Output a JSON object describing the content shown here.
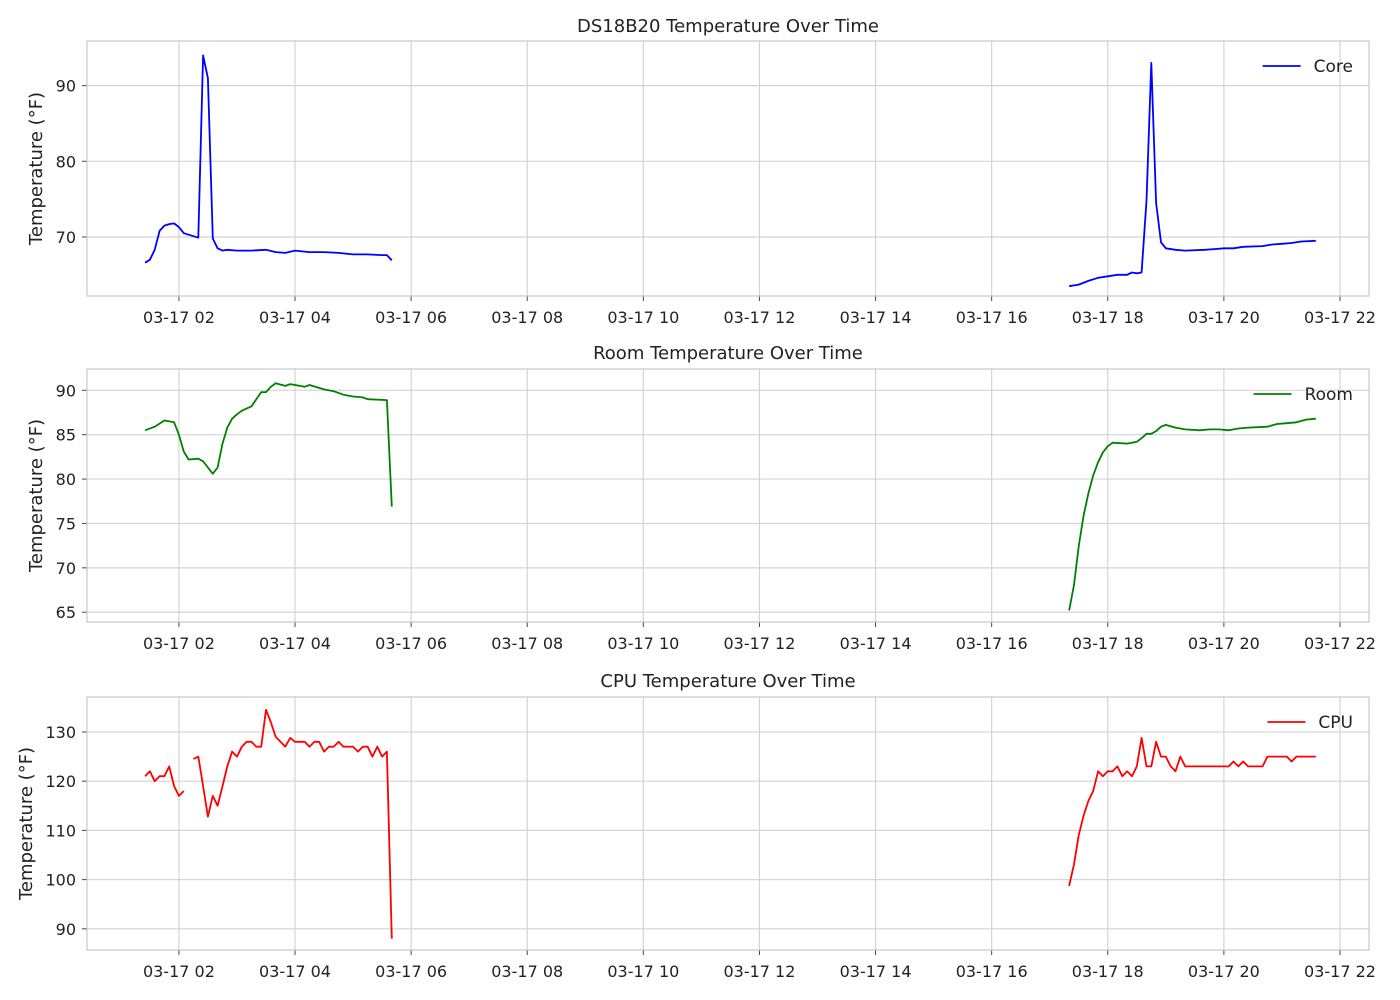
{
  "chart_data": [
    {
      "type": "line",
      "title": "DS18B20 Temperature Over Time",
      "ylabel": "Temperature (°F)",
      "xlabel": "",
      "xlim": [
        "03-17 00:25",
        "03-17 22:30"
      ],
      "ylim": [
        62.2,
        95.9
      ],
      "yticks": [
        70,
        80,
        90
      ],
      "xticks": [
        "03-17 02",
        "03-17 04",
        "03-17 06",
        "03-17 08",
        "03-17 10",
        "03-17 12",
        "03-17 14",
        "03-17 16",
        "03-17 18",
        "03-17 20",
        "03-17 22"
      ],
      "grid": true,
      "legend": "top-right",
      "color": "#0000ff",
      "series": [
        {
          "name": "Core",
          "points": [
            [
              "03-17 01:25",
              66.6
            ],
            [
              "03-17 01:30",
              67.0
            ],
            [
              "03-17 01:35",
              68.3
            ],
            [
              "03-17 01:40",
              70.8
            ],
            [
              "03-17 01:45",
              71.5
            ],
            [
              "03-17 01:50",
              71.7
            ],
            [
              "03-17 01:55",
              71.8
            ],
            [
              "03-17 02:00",
              71.3
            ],
            [
              "03-17 02:05",
              70.5
            ],
            [
              "03-17 02:10",
              70.3
            ],
            [
              "03-17 02:15",
              70.1
            ],
            [
              "03-17 02:20",
              69.9
            ],
            [
              "03-17 02:25",
              94.0
            ],
            [
              "03-17 02:30",
              91.0
            ],
            [
              "03-17 02:35",
              69.8
            ],
            [
              "03-17 02:40",
              68.5
            ],
            [
              "03-17 02:45",
              68.2
            ],
            [
              "03-17 02:50",
              68.3
            ],
            [
              "03-17 03:00",
              68.2
            ],
            [
              "03-17 03:15",
              68.2
            ],
            [
              "03-17 03:30",
              68.3
            ],
            [
              "03-17 03:40",
              68.0
            ],
            [
              "03-17 03:50",
              67.9
            ],
            [
              "03-17 04:00",
              68.2
            ],
            [
              "03-17 04:15",
              68.0
            ],
            [
              "03-17 04:30",
              68.0
            ],
            [
              "03-17 04:45",
              67.9
            ],
            [
              "03-17 05:00",
              67.7
            ],
            [
              "03-17 05:15",
              67.7
            ],
            [
              "03-17 05:30",
              67.6
            ],
            [
              "03-17 05:35",
              67.6
            ],
            [
              "03-17 05:40",
              66.9
            ]
          ]
        },
        {
          "name": "Core",
          "points": [
            [
              "03-17 17:20",
              63.5
            ],
            [
              "03-17 17:30",
              63.7
            ],
            [
              "03-17 17:40",
              64.2
            ],
            [
              "03-17 17:50",
              64.6
            ],
            [
              "03-17 18:00",
              64.8
            ],
            [
              "03-17 18:10",
              65.0
            ],
            [
              "03-17 18:20",
              65.0
            ],
            [
              "03-17 18:25",
              65.3
            ],
            [
              "03-17 18:30",
              65.2
            ],
            [
              "03-17 18:35",
              65.3
            ],
            [
              "03-17 18:40",
              74.8
            ],
            [
              "03-17 18:45",
              93.0
            ],
            [
              "03-17 18:50",
              74.5
            ],
            [
              "03-17 18:55",
              69.3
            ],
            [
              "03-17 19:00",
              68.5
            ],
            [
              "03-17 19:10",
              68.3
            ],
            [
              "03-17 19:20",
              68.2
            ],
            [
              "03-17 19:40",
              68.3
            ],
            [
              "03-17 19:50",
              68.4
            ],
            [
              "03-17 20:00",
              68.5
            ],
            [
              "03-17 20:10",
              68.5
            ],
            [
              "03-17 20:20",
              68.7
            ],
            [
              "03-17 20:40",
              68.8
            ],
            [
              "03-17 20:50",
              69.0
            ],
            [
              "03-17 21:00",
              69.1
            ],
            [
              "03-17 21:10",
              69.2
            ],
            [
              "03-17 21:20",
              69.4
            ],
            [
              "03-17 21:35",
              69.5
            ]
          ]
        }
      ]
    },
    {
      "type": "line",
      "title": "Room Temperature Over Time",
      "ylabel": "Temperature (°F)",
      "xlabel": "",
      "xlim": [
        "03-17 00:25",
        "03-17 22:30"
      ],
      "ylim": [
        63.9,
        92.4
      ],
      "yticks": [
        65,
        70,
        75,
        80,
        85,
        90
      ],
      "xticks": [
        "03-17 02",
        "03-17 04",
        "03-17 06",
        "03-17 08",
        "03-17 10",
        "03-17 12",
        "03-17 14",
        "03-17 16",
        "03-17 18",
        "03-17 20",
        "03-17 22"
      ],
      "grid": true,
      "legend": "top-right",
      "color": "#008000",
      "series": [
        {
          "name": "Room",
          "points": [
            [
              "03-17 01:25",
              85.5
            ],
            [
              "03-17 01:35",
              85.9
            ],
            [
              "03-17 01:45",
              86.6
            ],
            [
              "03-17 01:55",
              86.4
            ],
            [
              "03-17 02:00",
              85.0
            ],
            [
              "03-17 02:05",
              83.1
            ],
            [
              "03-17 02:10",
              82.2
            ],
            [
              "03-17 02:20",
              82.3
            ],
            [
              "03-17 02:25",
              82.0
            ],
            [
              "03-17 02:30",
              81.3
            ],
            [
              "03-17 02:35",
              80.6
            ],
            [
              "03-17 02:40",
              81.3
            ],
            [
              "03-17 02:45",
              84.0
            ],
            [
              "03-17 02:50",
              85.8
            ],
            [
              "03-17 02:55",
              86.8
            ],
            [
              "03-17 03:00",
              87.3
            ],
            [
              "03-17 03:05",
              87.7
            ],
            [
              "03-17 03:15",
              88.2
            ],
            [
              "03-17 03:20",
              89.0
            ],
            [
              "03-17 03:25",
              89.8
            ],
            [
              "03-17 03:30",
              89.8
            ],
            [
              "03-17 03:35",
              90.4
            ],
            [
              "03-17 03:40",
              90.8
            ],
            [
              "03-17 03:50",
              90.5
            ],
            [
              "03-17 03:55",
              90.7
            ],
            [
              "03-17 04:05",
              90.5
            ],
            [
              "03-17 04:10",
              90.4
            ],
            [
              "03-17 04:15",
              90.6
            ],
            [
              "03-17 04:30",
              90.1
            ],
            [
              "03-17 04:40",
              89.9
            ],
            [
              "03-17 04:50",
              89.5
            ],
            [
              "03-17 05:00",
              89.3
            ],
            [
              "03-17 05:10",
              89.2
            ],
            [
              "03-17 05:15",
              89.0
            ],
            [
              "03-17 05:35",
              88.9
            ],
            [
              "03-17 05:40",
              76.9
            ]
          ]
        },
        {
          "name": "Room",
          "points": [
            [
              "03-17 17:20",
              65.2
            ],
            [
              "03-17 17:25",
              68.0
            ],
            [
              "03-17 17:30",
              72.4
            ],
            [
              "03-17 17:35",
              75.9
            ],
            [
              "03-17 17:40",
              78.4
            ],
            [
              "03-17 17:45",
              80.4
            ],
            [
              "03-17 17:50",
              81.9
            ],
            [
              "03-17 17:55",
              83.0
            ],
            [
              "03-17 18:00",
              83.7
            ],
            [
              "03-17 18:05",
              84.1
            ],
            [
              "03-17 18:20",
              84.0
            ],
            [
              "03-17 18:30",
              84.2
            ],
            [
              "03-17 18:35",
              84.6
            ],
            [
              "03-17 18:40",
              85.1
            ],
            [
              "03-17 18:45",
              85.1
            ],
            [
              "03-17 18:50",
              85.4
            ],
            [
              "03-17 18:55",
              85.9
            ],
            [
              "03-17 19:00",
              86.1
            ],
            [
              "03-17 19:10",
              85.8
            ],
            [
              "03-17 19:20",
              85.6
            ],
            [
              "03-17 19:35",
              85.5
            ],
            [
              "03-17 19:45",
              85.6
            ],
            [
              "03-17 19:55",
              85.6
            ],
            [
              "03-17 20:05",
              85.5
            ],
            [
              "03-17 20:15",
              85.7
            ],
            [
              "03-17 20:25",
              85.8
            ],
            [
              "03-17 20:45",
              85.9
            ],
            [
              "03-17 20:55",
              86.2
            ],
            [
              "03-17 21:05",
              86.3
            ],
            [
              "03-17 21:15",
              86.4
            ],
            [
              "03-17 21:25",
              86.7
            ],
            [
              "03-17 21:35",
              86.8
            ]
          ]
        }
      ]
    },
    {
      "type": "line",
      "title": "CPU Temperature Over Time",
      "ylabel": "Temperature (°F)",
      "xlabel": "",
      "xlim": [
        "03-17 00:25",
        "03-17 22:30"
      ],
      "ylim": [
        85.7,
        137.1
      ],
      "yticks": [
        90,
        100,
        110,
        120,
        130
      ],
      "xticks": [
        "03-17 02",
        "03-17 04",
        "03-17 06",
        "03-17 08",
        "03-17 10",
        "03-17 12",
        "03-17 14",
        "03-17 16",
        "03-17 18",
        "03-17 20",
        "03-17 22"
      ],
      "grid": true,
      "legend": "top-right",
      "color": "#ff0000",
      "series": [
        {
          "name": "CPU",
          "points": [
            [
              "03-17 01:25",
              121.0
            ],
            [
              "03-17 01:30",
              122.0
            ],
            [
              "03-17 01:35",
              120.0
            ],
            [
              "03-17 01:40",
              121.0
            ],
            [
              "03-17 01:45",
              121.0
            ],
            [
              "03-17 01:50",
              123.0
            ],
            [
              "03-17 01:55",
              119.0
            ],
            [
              "03-17 02:00",
              117.0
            ],
            [
              "03-17 02:05",
              118.0
            ]
          ]
        },
        {
          "name": "CPU",
          "points": [
            [
              "03-17 02:15",
              124.5
            ],
            [
              "03-17 02:20",
              125.0
            ],
            [
              "03-17 02:25",
              119.0
            ],
            [
              "03-17 02:30",
              112.8
            ],
            [
              "03-17 02:35",
              117.0
            ],
            [
              "03-17 02:40",
              115.0
            ],
            [
              "03-17 02:45",
              119.0
            ],
            [
              "03-17 02:50",
              123.0
            ],
            [
              "03-17 02:55",
              126.0
            ],
            [
              "03-17 03:00",
              125.0
            ],
            [
              "03-17 03:05",
              127.0
            ],
            [
              "03-17 03:10",
              128.0
            ],
            [
              "03-17 03:15",
              128.0
            ],
            [
              "03-17 03:20",
              127.0
            ],
            [
              "03-17 03:25",
              127.0
            ],
            [
              "03-17 03:30",
              134.5
            ],
            [
              "03-17 03:35",
              132.0
            ],
            [
              "03-17 03:40",
              129.0
            ],
            [
              "03-17 03:45",
              128.0
            ],
            [
              "03-17 03:50",
              127.0
            ],
            [
              "03-17 03:55",
              128.8
            ],
            [
              "03-17 04:00",
              128.0
            ],
            [
              "03-17 04:10",
              128.0
            ],
            [
              "03-17 04:15",
              127.0
            ],
            [
              "03-17 04:20",
              128.0
            ],
            [
              "03-17 04:25",
              128.0
            ],
            [
              "03-17 04:30",
              126.0
            ],
            [
              "03-17 04:35",
              127.0
            ],
            [
              "03-17 04:40",
              127.0
            ],
            [
              "03-17 04:45",
              128.0
            ],
            [
              "03-17 04:50",
              127.0
            ],
            [
              "03-17 05:00",
              127.0
            ],
            [
              "03-17 05:05",
              126.0
            ],
            [
              "03-17 05:10",
              127.0
            ],
            [
              "03-17 05:15",
              127.0
            ],
            [
              "03-17 05:20",
              125.0
            ],
            [
              "03-17 05:25",
              127.0
            ],
            [
              "03-17 05:30",
              125.0
            ],
            [
              "03-17 05:35",
              126.0
            ],
            [
              "03-17 05:40",
              88.0
            ]
          ]
        },
        {
          "name": "CPU",
          "points": [
            [
              "03-17 17:20",
              98.7
            ],
            [
              "03-17 17:25",
              103.0
            ],
            [
              "03-17 17:30",
              109.0
            ],
            [
              "03-17 17:35",
              113.0
            ],
            [
              "03-17 17:40",
              116.0
            ],
            [
              "03-17 17:45",
              118.0
            ],
            [
              "03-17 17:50",
              122.0
            ],
            [
              "03-17 17:55",
              121.0
            ],
            [
              "03-17 18:00",
              122.0
            ],
            [
              "03-17 18:05",
              122.0
            ],
            [
              "03-17 18:10",
              123.0
            ],
            [
              "03-17 18:15",
              121.0
            ],
            [
              "03-17 18:20",
              122.0
            ],
            [
              "03-17 18:25",
              121.0
            ],
            [
              "03-17 18:30",
              123.0
            ],
            [
              "03-17 18:35",
              128.8
            ],
            [
              "03-17 18:40",
              123.0
            ],
            [
              "03-17 18:45",
              123.0
            ],
            [
              "03-17 18:50",
              128.0
            ],
            [
              "03-17 18:55",
              125.0
            ],
            [
              "03-17 19:00",
              125.0
            ],
            [
              "03-17 19:05",
              123.0
            ],
            [
              "03-17 19:10",
              122.0
            ],
            [
              "03-17 19:15",
              125.0
            ],
            [
              "03-17 19:20",
              123.0
            ],
            [
              "03-17 19:30",
              123.0
            ],
            [
              "03-17 19:40",
              123.0
            ],
            [
              "03-17 19:50",
              123.0
            ],
            [
              "03-17 20:00",
              123.0
            ],
            [
              "03-17 20:05",
              123.0
            ],
            [
              "03-17 20:10",
              124.0
            ],
            [
              "03-17 20:15",
              123.0
            ],
            [
              "03-17 20:20",
              124.0
            ],
            [
              "03-17 20:25",
              123.0
            ],
            [
              "03-17 20:35",
              123.0
            ],
            [
              "03-17 20:40",
              123.0
            ],
            [
              "03-17 20:45",
              125.0
            ],
            [
              "03-17 20:55",
              125.0
            ],
            [
              "03-17 21:05",
              125.0
            ],
            [
              "03-17 21:10",
              124.0
            ],
            [
              "03-17 21:15",
              125.0
            ],
            [
              "03-17 21:25",
              125.0
            ],
            [
              "03-17 21:35",
              125.0
            ]
          ]
        }
      ]
    }
  ]
}
